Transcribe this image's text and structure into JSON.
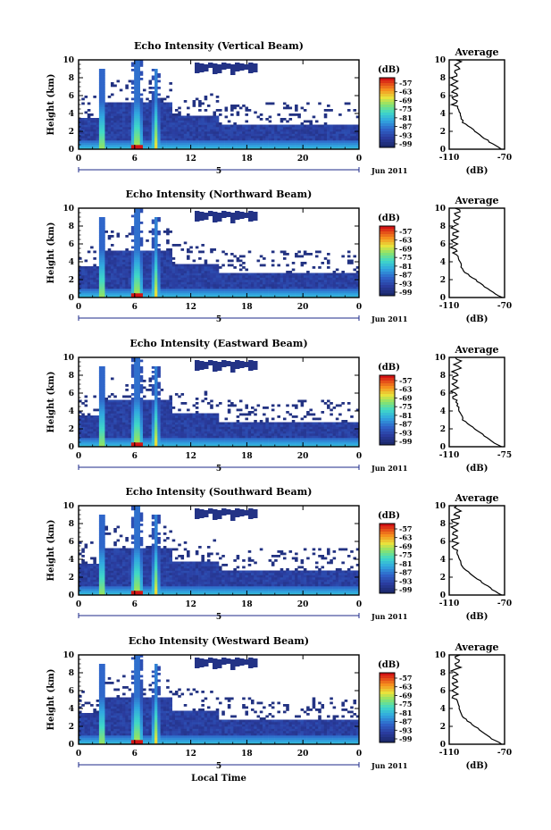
{
  "chart_data": [
    {
      "type": "heatmap",
      "title": "Echo Intensity (Vertical Beam)",
      "ylabel": "Height (km)",
      "ylim": [
        0,
        10
      ],
      "yticks": [
        "0",
        "2",
        "4",
        "6",
        "8",
        "10"
      ],
      "xlim": [
        0,
        24
      ],
      "xticks": [
        "0",
        "6",
        "12",
        "18",
        "20",
        "0"
      ],
      "date_marker": "5",
      "date_label": "Jun 2011",
      "colorbar": {
        "unit": "(dB)",
        "ticks": [
          "-57",
          "-63",
          "-69",
          "-75",
          "-81",
          "-87",
          "-93",
          "-99"
        ]
      },
      "average": {
        "title": "Average",
        "xlabel": "(dB)",
        "xticks": [
          "-110",
          "-70"
        ],
        "xlim": [
          -110,
          -70
        ],
        "yticks": [
          "0",
          "2",
          "4",
          "6",
          "8",
          "10"
        ]
      }
    },
    {
      "type": "heatmap",
      "title": "Echo Intensity (Northward Beam)",
      "ylabel": "Height (km)",
      "ylim": [
        0,
        10
      ],
      "yticks": [
        "0",
        "2",
        "4",
        "6",
        "8",
        "10"
      ],
      "xlim": [
        0,
        24
      ],
      "xticks": [
        "0",
        "6",
        "12",
        "18",
        "20",
        "0"
      ],
      "date_marker": "5",
      "date_label": "Jun 2011",
      "colorbar": {
        "unit": "(dB)",
        "ticks": [
          "-57",
          "-63",
          "-69",
          "-75",
          "-81",
          "-87",
          "-93",
          "-99"
        ]
      },
      "average": {
        "title": "Average",
        "xlabel": "(dB)",
        "xticks": [
          "-110",
          "-70"
        ],
        "xlim": [
          -110,
          -70
        ],
        "yticks": [
          "0",
          "2",
          "4",
          "6",
          "8",
          "10"
        ]
      }
    },
    {
      "type": "heatmap",
      "title": "Echo Intensity (Eastward Beam)",
      "ylabel": "Height (km)",
      "ylim": [
        0,
        10
      ],
      "yticks": [
        "0",
        "2",
        "4",
        "6",
        "8",
        "10"
      ],
      "xlim": [
        0,
        24
      ],
      "xticks": [
        "0",
        "6",
        "12",
        "18",
        "20",
        "0"
      ],
      "date_marker": "5",
      "date_label": "Jun 2011",
      "colorbar": {
        "unit": "(dB)",
        "ticks": [
          "-57",
          "-63",
          "-69",
          "-75",
          "-81",
          "-87",
          "-93",
          "-99"
        ]
      },
      "average": {
        "title": "Average",
        "xlabel": "(dB)",
        "xticks": [
          "-110",
          "-75"
        ],
        "xlim": [
          -110,
          -75
        ],
        "yticks": [
          "0",
          "2",
          "4",
          "6",
          "8",
          "10"
        ]
      }
    },
    {
      "type": "heatmap",
      "title": "Echo Intensity (Southward Beam)",
      "ylabel": "Height (km)",
      "ylim": [
        0,
        10
      ],
      "yticks": [
        "0",
        "2",
        "4",
        "6",
        "8",
        "10"
      ],
      "xlim": [
        0,
        24
      ],
      "xticks": [
        "0",
        "6",
        "12",
        "18",
        "20",
        "0"
      ],
      "date_marker": "5",
      "date_label": "Jun 2011",
      "colorbar": {
        "unit": "(dB)",
        "ticks": [
          "-57",
          "-63",
          "-69",
          "-75",
          "-81",
          "-87",
          "-93",
          "-99"
        ]
      },
      "average": {
        "title": "Average",
        "xlabel": "(dB)",
        "xticks": [
          "-110",
          "-70"
        ],
        "xlim": [
          -110,
          -70
        ],
        "yticks": [
          "0",
          "2",
          "4",
          "6",
          "8",
          "10"
        ]
      }
    },
    {
      "type": "heatmap",
      "title": "Echo Intensity (Westward Beam)",
      "ylabel": "Height (km)",
      "ylim": [
        0,
        10
      ],
      "yticks": [
        "0",
        "2",
        "4",
        "6",
        "8",
        "10"
      ],
      "xlim": [
        0,
        24
      ],
      "xticks": [
        "0",
        "6",
        "12",
        "18",
        "20",
        "0"
      ],
      "date_marker": "5",
      "date_label": "Jun 2011",
      "xlabel": "Local Time",
      "colorbar": {
        "unit": "(dB)",
        "ticks": [
          "-57",
          "-63",
          "-69",
          "-75",
          "-81",
          "-87",
          "-93",
          "-99"
        ]
      },
      "average": {
        "title": "Average",
        "xlabel": "(dB)",
        "xticks": [
          "-110",
          "-70"
        ],
        "xlim": [
          -110,
          -70
        ],
        "yticks": [
          "0",
          "2",
          "4",
          "6",
          "8",
          "10"
        ]
      }
    }
  ]
}
